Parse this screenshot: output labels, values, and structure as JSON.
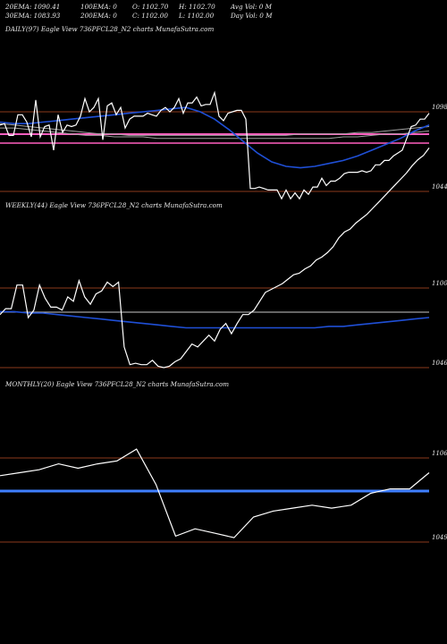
{
  "header": {
    "row1": [
      {
        "id": "ema20",
        "text": "20EMA: 1090.41"
      },
      {
        "id": "ema100",
        "text": "100EMA: 0"
      },
      {
        "id": "open",
        "text": "O: 1102.70"
      },
      {
        "id": "high",
        "text": "H: 1102.70"
      },
      {
        "id": "avgvol",
        "text": "Avg Vol: 0  M"
      }
    ],
    "row2": [
      {
        "id": "ema30",
        "text": "30EMA: 1083.93"
      },
      {
        "id": "ema200",
        "text": "200EMA: 0"
      },
      {
        "id": "close",
        "text": "C: 1102.00"
      },
      {
        "id": "low",
        "text": "L: 1102.00"
      },
      {
        "id": "dayvol",
        "text": "Day Vol: 0  M"
      }
    ]
  },
  "colors": {
    "background": "#000000",
    "price": "#ffffff",
    "ema_blue": "#1f4fd6",
    "ema_grey": "#a0a0a0",
    "level_line": "#8b3a1c",
    "support_pink": "#ff5fbf",
    "support_blue": "#3f7fff"
  },
  "chart_data": [
    {
      "type": "line",
      "title": "DAILY(97) Eagle  View  736PFCL28_N2  charts MunafaSutra.com",
      "level_labels": [
        "1098",
        "1044"
      ],
      "series": [
        {
          "role": "price",
          "values": [
            1089,
            1090,
            1082,
            1082,
            1096,
            1096,
            1091,
            1081,
            1106,
            1081,
            1088,
            1089,
            1072,
            1096,
            1084,
            1089,
            1088,
            1089,
            1095,
            1107,
            1098,
            1101,
            1107,
            1079,
            1102,
            1104,
            1096,
            1101,
            1087,
            1093,
            1095,
            1095,
            1095,
            1097,
            1096,
            1095,
            1099,
            1101,
            1098,
            1101,
            1107,
            1097,
            1104,
            1104,
            1108,
            1102,
            1103,
            1103,
            1111,
            1095,
            1092,
            1097,
            1098,
            1099,
            1099,
            1093,
            1046,
            1046,
            1047,
            1046,
            1045,
            1045,
            1045,
            1039,
            1045,
            1039,
            1043,
            1039,
            1045,
            1042,
            1047,
            1047,
            1053,
            1048,
            1051,
            1051,
            1053,
            1056,
            1057,
            1057,
            1057,
            1058,
            1057,
            1058,
            1062,
            1062,
            1065,
            1065,
            1068,
            1070,
            1072,
            1080,
            1088,
            1089,
            1093,
            1093,
            1097
          ]
        },
        {
          "role": "ema-blue",
          "values": [
            1091,
            1090,
            1090,
            1091,
            1092,
            1093,
            1094,
            1095,
            1096,
            1097,
            1098,
            1099,
            1100,
            1101,
            1098,
            1093,
            1086,
            1078,
            1070,
            1064,
            1061,
            1060,
            1061,
            1063,
            1065,
            1068,
            1072,
            1076,
            1080,
            1085,
            1089
          ]
        },
        {
          "role": "ema-grey-1",
          "values": [
            1087,
            1087,
            1086,
            1085,
            1084,
            1083,
            1082,
            1082,
            1081,
            1081,
            1081,
            1080,
            1080,
            1080,
            1080,
            1080,
            1080,
            1080,
            1080,
            1080,
            1080,
            1080,
            1080,
            1080,
            1081,
            1081,
            1082,
            1083,
            1083,
            1084,
            1085
          ]
        },
        {
          "role": "ema-grey-2",
          "values": [
            1090,
            1089,
            1088,
            1087,
            1086,
            1085,
            1084,
            1083,
            1083,
            1082,
            1082,
            1082,
            1082,
            1082,
            1082,
            1082,
            1082,
            1082,
            1082,
            1082,
            1082,
            1083,
            1083,
            1083,
            1083,
            1084,
            1084,
            1085,
            1086,
            1087,
            1088
          ]
        }
      ]
    },
    {
      "type": "line",
      "title": "WEEKLY(44) Eagle  View  736PFCL28_N2  charts MunafaSutra.com",
      "level_labels": [
        "1100",
        "1046"
      ],
      "series": [
        {
          "role": "price",
          "values": [
            1082,
            1086,
            1086,
            1102,
            1102,
            1080,
            1085,
            1102,
            1093,
            1087,
            1087,
            1085,
            1094,
            1091,
            1105,
            1094,
            1089,
            1096,
            1098,
            1104,
            1101,
            1104,
            1060,
            1048,
            1049,
            1048,
            1048,
            1051,
            1047,
            1046,
            1047,
            1050,
            1052,
            1057,
            1062,
            1060,
            1064,
            1068,
            1064,
            1072,
            1076,
            1069,
            1076,
            1082,
            1082,
            1085,
            1091,
            1097,
            1099,
            1101,
            1103,
            1106,
            1109,
            1110,
            1113,
            1115,
            1119,
            1121,
            1124,
            1128,
            1134,
            1138,
            1140,
            1144,
            1147,
            1150,
            1154,
            1158,
            1162,
            1166,
            1170,
            1174,
            1178,
            1183,
            1187,
            1190,
            1195
          ]
        },
        {
          "role": "ema-blue",
          "values": [
            1084,
            1084,
            1083,
            1083,
            1082,
            1081,
            1080,
            1079,
            1078,
            1077,
            1076,
            1075,
            1074,
            1073,
            1073,
            1073,
            1073,
            1073,
            1073,
            1073,
            1073,
            1073,
            1073,
            1074,
            1074,
            1075,
            1076,
            1077,
            1078,
            1079,
            1080
          ]
        }
      ]
    },
    {
      "type": "line",
      "title": "MONTHLY(20) Eagle  View  736PFCL28_N2  charts MunafaSutra.com",
      "level_labels": [
        "1106",
        "1049"
      ],
      "series": [
        {
          "role": "price",
          "values": [
            1094,
            1096,
            1098,
            1102,
            1099,
            1102,
            1104,
            1112,
            1088,
            1053,
            1058,
            1055,
            1052,
            1066,
            1070,
            1072,
            1074,
            1072,
            1074,
            1082,
            1085,
            1085,
            1096
          ]
        }
      ]
    }
  ]
}
